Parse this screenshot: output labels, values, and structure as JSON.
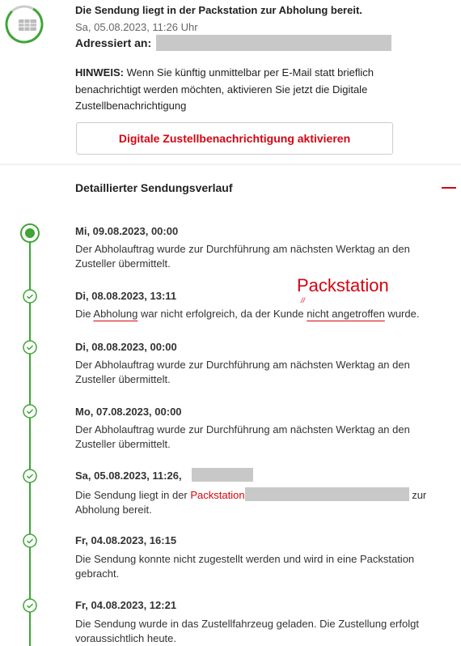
{
  "status": {
    "title": "Die Sendung liegt in der Packstation zur Abholung bereit.",
    "date": "Sa, 05.08.2023, 11:26 Uhr",
    "address_label": "Adressiert an:"
  },
  "notice": {
    "label": "HINWEIS:",
    "text": "Wenn Sie künftig unmittelbar per E-Mail statt brieflich benachrichtigt werden möchten, aktivieren Sie jetzt die Digitale Zustellbenachrichtigung"
  },
  "button": "Digitale Zustellbenachrichtigung aktivieren",
  "history": {
    "title": "Detaillierter Sendungsverlauf",
    "events": [
      {
        "date": "Mi, 09.08.2023, 00:00",
        "text": [
          "Der Abholauftrag wurde zur Durchführung am nächsten Werktag an den Zusteller übermittelt."
        ]
      },
      {
        "date": "Di, 08.08.2023, 13:11",
        "text": [
          "Die ",
          "Abholung",
          " war nicht erfolgreich, da der Kunde ",
          "nicht angetroffen",
          " wurde."
        ]
      },
      {
        "date": "Di, 08.08.2023, 00:00",
        "text": [
          "Der Abholauftrag wurde zur Durchführung am nächsten Werktag an den Zusteller übermittelt."
        ]
      },
      {
        "date": "Mo, 07.08.2023, 00:00",
        "text": [
          "Der Abholauftrag wurde zur Durchführung am nächsten Werktag an den Zusteller übermittelt."
        ]
      },
      {
        "date": "Sa, 05.08.2023, 11:26,",
        "text": [
          "Die Sendung liegt in der ",
          "Packstation",
          " zur Abholung bereit."
        ]
      },
      {
        "date": "Fr, 04.08.2023, 16:15",
        "text": [
          "Die Sendung konnte nicht zugestellt werden und wird in eine Packstation gebracht."
        ]
      },
      {
        "date": "Fr, 04.08.2023, 12:21",
        "text": [
          "Die Sendung wurde in das Zustellfahrzeug geladen. Die Zustellung erfolgt voraussichtlich heute."
        ]
      }
    ]
  },
  "annotation": {
    "label": "Packstation",
    "mark": "//"
  }
}
